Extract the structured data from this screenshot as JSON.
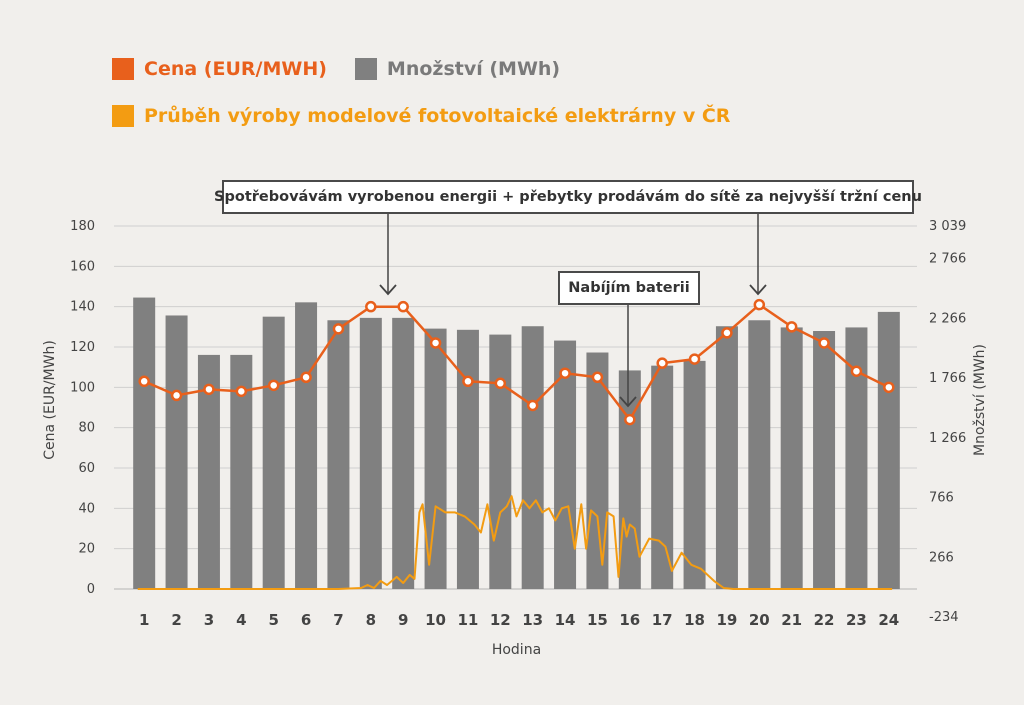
{
  "legend": {
    "price_label": "Cena (EUR/MWH)",
    "volume_label": "Množství (MWh)",
    "pv_label": "Průběh výroby modelové fotovoltaické elektrárny v ČR"
  },
  "colors": {
    "price": "#e8601c",
    "volume": "#808080",
    "pv": "#f39c12",
    "text": "#444444",
    "grid": "#cfcfcf"
  },
  "annotations": {
    "sell": "Spotřebovávám vyrobenou energii + přebytky prodávám do sítě za nejvyšší tržní cenu",
    "charge": "Nabíjím baterii"
  },
  "chart_data": {
    "type": "bar",
    "xlabel": "Hodina",
    "ylabel_left": "Cena (EUR/MWh)",
    "ylabel_right": "Množství (MWh)",
    "categories": [
      "1",
      "2",
      "3",
      "4",
      "5",
      "6",
      "7",
      "8",
      "9",
      "10",
      "11",
      "12",
      "13",
      "14",
      "15",
      "16",
      "17",
      "18",
      "19",
      "20",
      "21",
      "22",
      "23",
      "24"
    ],
    "left_ticks": [
      "180",
      "160",
      "140",
      "120",
      "100",
      "80",
      "60",
      "40",
      "20",
      "0"
    ],
    "right_ticks": [
      "3 039",
      "2 766",
      "2 266",
      "1 766",
      "1 266",
      "766",
      "266",
      "-234"
    ],
    "ylim_left": [
      0,
      180
    ],
    "ylim_right": [
      -234,
      3039
    ],
    "series": [
      {
        "name": "Množství (MWh)",
        "type": "bar",
        "axis": "right",
        "values": [
          2440,
          2290,
          1960,
          1960,
          2280,
          2400,
          2250,
          2270,
          2270,
          2180,
          2170,
          2130,
          2200,
          2080,
          1980,
          1830,
          1870,
          1910,
          2200,
          2250,
          2190,
          2160,
          2190,
          2320
        ]
      },
      {
        "name": "Cena (EUR/MWH)",
        "type": "line",
        "axis": "left",
        "values": [
          103,
          96,
          99,
          98,
          101,
          105,
          129,
          140,
          140,
          122,
          103,
          102,
          91,
          107,
          105,
          84,
          112,
          114,
          127,
          141,
          130,
          122,
          108,
          100
        ]
      },
      {
        "name": "Průběh výroby modelové fotovoltaické elektrárny v ČR",
        "type": "line",
        "axis": "left",
        "x": [
          0.8,
          1,
          2,
          3,
          4,
          5,
          6,
          7,
          7.7,
          7.9,
          8.1,
          8.3,
          8.5,
          8.8,
          9.0,
          9.2,
          9.35,
          9.5,
          9.6,
          9.8,
          10.0,
          10.3,
          10.6,
          10.9,
          11.2,
          11.4,
          11.6,
          11.8,
          12.0,
          12.2,
          12.35,
          12.5,
          12.7,
          12.9,
          13.1,
          13.3,
          13.5,
          13.7,
          13.9,
          14.1,
          14.3,
          14.5,
          14.65,
          14.8,
          15.0,
          15.15,
          15.3,
          15.5,
          15.65,
          15.8,
          15.9,
          16.0,
          16.15,
          16.3,
          16.6,
          16.9,
          17.1,
          17.3,
          17.6,
          17.9,
          18.2,
          18.6,
          18.9,
          19.2,
          20,
          21,
          22,
          23,
          24.1
        ],
        "values": [
          0,
          0,
          0,
          0,
          0,
          0,
          0,
          0,
          0.5,
          2,
          0.5,
          4,
          2,
          6,
          3,
          7,
          5,
          38,
          42,
          12,
          41,
          38,
          38,
          36,
          32,
          28,
          42,
          24,
          38,
          41,
          46,
          36,
          44,
          40,
          44,
          38,
          40,
          34,
          40,
          41,
          20,
          42,
          20,
          39,
          36,
          12,
          38,
          36,
          6,
          35,
          26,
          32,
          30,
          16,
          25,
          24,
          21,
          9,
          18,
          12,
          10,
          4,
          0.5,
          0,
          0,
          0,
          0,
          0,
          0
        ]
      }
    ]
  }
}
